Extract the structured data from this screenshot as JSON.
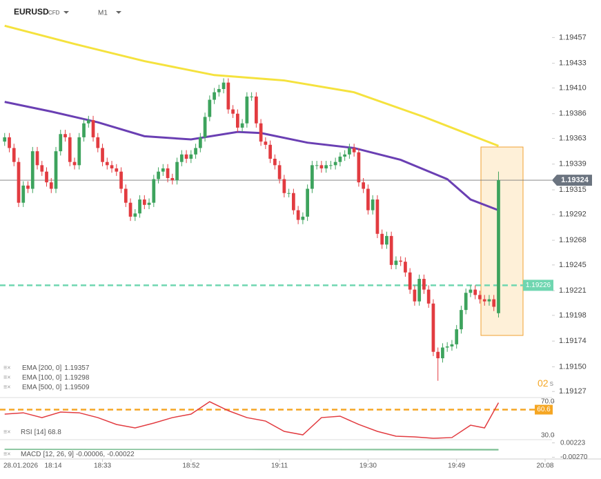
{
  "header": {
    "symbol": "EURUSD",
    "instrument_type": "CFD",
    "timeframe": "M1"
  },
  "chart_data": {
    "type": "candlestick",
    "open": [
      1.1936,
      1.19364,
      1.19354,
      1.19341,
      1.19303,
      1.19319,
      1.19316,
      1.19351,
      1.19338,
      1.19332,
      1.19322,
      1.19316,
      1.19351,
      1.19367,
      1.19364,
      1.19341,
      1.19338,
      1.19364,
      1.19377,
      1.1938,
      1.19364,
      1.19354,
      1.19341,
      1.19338,
      1.19335,
      1.19332,
      1.19316,
      1.19303,
      1.1929,
      1.19293,
      1.19306,
      1.19301,
      1.19303,
      1.19325,
      1.19332,
      1.19335,
      1.19326,
      1.19324,
      1.19341,
      1.19348,
      1.19344,
      1.19348,
      1.19354,
      1.19364,
      1.19383,
      1.19399,
      1.19406,
      1.19409,
      1.19415,
      1.1939,
      1.19386,
      1.19373,
      1.19377,
      1.19402,
      1.19402,
      1.19377,
      1.1936,
      1.19357,
      1.19344,
      1.19338,
      1.19325,
      1.19312,
      1.19312,
      1.19296,
      1.19287,
      1.1929,
      1.19316,
      1.19338,
      1.19338,
      1.19335,
      1.19338,
      1.19338,
      1.19341,
      1.19346,
      1.19348,
      1.19354,
      1.1935,
      1.19322,
      1.19316,
      1.19296,
      1.19306,
      1.19274,
      1.19264,
      1.19272,
      1.19245,
      1.19249,
      1.19248,
      1.19238,
      1.19222,
      1.19211,
      1.19232,
      1.19222,
      1.19209,
      1.19164,
      1.19158,
      1.19168,
      1.19169,
      1.19171,
      1.19185,
      1.19203,
      1.19219,
      1.19222,
      1.19217,
      1.19213,
      1.19211,
      1.19213,
      1.192
    ],
    "high": [
      1.19368,
      1.19368,
      1.19358,
      1.19345,
      1.19323,
      1.19323,
      1.19355,
      1.19355,
      1.19342,
      1.19336,
      1.19326,
      1.19355,
      1.19371,
      1.19371,
      1.19368,
      1.19345,
      1.19368,
      1.19381,
      1.19384,
      1.19384,
      1.19368,
      1.19358,
      1.19345,
      1.19342,
      1.19339,
      1.19336,
      1.1932,
      1.19307,
      1.19297,
      1.1931,
      1.1931,
      1.19307,
      1.19329,
      1.19336,
      1.19339,
      1.19339,
      1.1933,
      1.19345,
      1.19352,
      1.19352,
      1.19352,
      1.19358,
      1.19368,
      1.19387,
      1.19403,
      1.1941,
      1.19413,
      1.19419,
      1.19419,
      1.19394,
      1.1939,
      1.19381,
      1.19406,
      1.19406,
      1.19406,
      1.19381,
      1.19364,
      1.19361,
      1.19348,
      1.19342,
      1.19329,
      1.19316,
      1.19316,
      1.193,
      1.19294,
      1.1932,
      1.19342,
      1.19342,
      1.19342,
      1.19342,
      1.19342,
      1.19345,
      1.1935,
      1.19352,
      1.19358,
      1.19358,
      1.19354,
      1.19326,
      1.1932,
      1.1931,
      1.1931,
      1.19278,
      1.19276,
      1.19276,
      1.19253,
      1.19253,
      1.19252,
      1.19242,
      1.19226,
      1.19236,
      1.19236,
      1.19226,
      1.19213,
      1.19168,
      1.19172,
      1.19173,
      1.19175,
      1.19189,
      1.19207,
      1.19223,
      1.19226,
      1.19226,
      1.19221,
      1.19217,
      1.19217,
      1.19217,
      1.19332
    ],
    "low": [
      1.19356,
      1.1935,
      1.19337,
      1.19299,
      1.19299,
      1.19312,
      1.19312,
      1.19334,
      1.19328,
      1.19318,
      1.19312,
      1.19312,
      1.19347,
      1.1936,
      1.19337,
      1.19334,
      1.19334,
      1.1936,
      1.19373,
      1.1936,
      1.1935,
      1.19337,
      1.19334,
      1.19331,
      1.19328,
      1.19312,
      1.19299,
      1.19286,
      1.19286,
      1.19289,
      1.19297,
      1.19297,
      1.19299,
      1.19321,
      1.19328,
      1.19322,
      1.1932,
      1.1932,
      1.19337,
      1.1934,
      1.1934,
      1.19344,
      1.1935,
      1.1936,
      1.19379,
      1.19395,
      1.19402,
      1.19405,
      1.19386,
      1.19382,
      1.19369,
      1.19369,
      1.19373,
      1.19398,
      1.19373,
      1.19356,
      1.19353,
      1.1934,
      1.19334,
      1.19321,
      1.19308,
      1.19308,
      1.19292,
      1.19283,
      1.19283,
      1.19286,
      1.19312,
      1.19334,
      1.19331,
      1.19331,
      1.19334,
      1.19334,
      1.19337,
      1.19342,
      1.19344,
      1.19346,
      1.19318,
      1.19312,
      1.19292,
      1.19292,
      1.1927,
      1.1926,
      1.1926,
      1.19241,
      1.19241,
      1.19244,
      1.19234,
      1.19218,
      1.19207,
      1.19207,
      1.19218,
      1.19205,
      1.1916,
      1.19137,
      1.19154,
      1.19164,
      1.19165,
      1.19167,
      1.19181,
      1.19199,
      1.19215,
      1.19213,
      1.19209,
      1.19207,
      1.19207,
      1.19202,
      1.19196
    ],
    "close": [
      1.19364,
      1.19354,
      1.19341,
      1.19303,
      1.19319,
      1.19316,
      1.19351,
      1.19338,
      1.19332,
      1.19322,
      1.19316,
      1.19351,
      1.19367,
      1.19364,
      1.19341,
      1.19338,
      1.19364,
      1.19377,
      1.1938,
      1.19364,
      1.19354,
      1.19341,
      1.19338,
      1.19335,
      1.19332,
      1.19316,
      1.19303,
      1.1929,
      1.19293,
      1.19306,
      1.19301,
      1.19303,
      1.19325,
      1.19332,
      1.19335,
      1.19326,
      1.19324,
      1.19341,
      1.19348,
      1.19344,
      1.19348,
      1.19354,
      1.19364,
      1.19383,
      1.19399,
      1.19406,
      1.19409,
      1.19415,
      1.1939,
      1.19386,
      1.19373,
      1.19377,
      1.19402,
      1.19402,
      1.19377,
      1.1936,
      1.19357,
      1.19344,
      1.19338,
      1.19325,
      1.19312,
      1.19312,
      1.19296,
      1.19287,
      1.1929,
      1.19316,
      1.19338,
      1.19338,
      1.19335,
      1.19338,
      1.19338,
      1.19341,
      1.19346,
      1.19348,
      1.19354,
      1.1935,
      1.19322,
      1.19316,
      1.19296,
      1.19306,
      1.19274,
      1.19264,
      1.19272,
      1.19245,
      1.19249,
      1.19248,
      1.19238,
      1.19222,
      1.19211,
      1.19232,
      1.19222,
      1.19209,
      1.19164,
      1.19158,
      1.19168,
      1.19169,
      1.19171,
      1.19185,
      1.19203,
      1.19219,
      1.19222,
      1.19217,
      1.19213,
      1.19211,
      1.19213,
      1.19206,
      1.19324
    ],
    "up_color": "#3da35d",
    "down_color": "#e23b40",
    "xlim": [
      -1,
      128
    ],
    "xticks": [
      {
        "value": 21,
        "label": "18:33"
      },
      {
        "value": 40,
        "label": "18:52"
      },
      {
        "value": 59,
        "label": "19:11"
      },
      {
        "value": 78,
        "label": "19:30"
      },
      {
        "value": 97,
        "label": "19:49"
      },
      {
        "value": 116,
        "label": "20:08"
      }
    ],
    "date_label": "28.01.2026",
    "first_time_label": "18:14",
    "ylim": [
      1.19122,
      1.19492
    ],
    "yticks": [
      1.19457,
      1.19433,
      {
        "value": 1.1941,
        "label": "1.19410"
      },
      1.19386,
      1.19363,
      1.19339,
      1.19315,
      1.19292,
      1.19268,
      1.19245,
      1.19221,
      1.19198,
      1.19174,
      {
        "value": 1.1915,
        "label": "1.19150"
      },
      1.19127
    ],
    "current_price": 1.19324,
    "price_line": 1.19226,
    "countdown": {
      "value": "02",
      "unit": "s"
    },
    "series": [
      {
        "name": "EMA [200, 0]",
        "last": 1.19357,
        "color": "#f5e23e",
        "x": [
          0,
          15,
          30,
          45,
          60,
          75,
          90,
          106
        ],
        "values": [
          1.19468,
          1.19451,
          1.19435,
          1.19422,
          1.19417,
          1.19406,
          1.19383,
          1.19356
        ]
      },
      {
        "name": "EMA [100, 0]",
        "last": 1.19298,
        "color": "#6a3fb3",
        "x": [
          0,
          10,
          20,
          30,
          40,
          50,
          55,
          65,
          75,
          85,
          95,
          100,
          106
        ],
        "values": [
          1.19397,
          1.19388,
          1.19378,
          1.19365,
          1.19362,
          1.19369,
          1.19368,
          1.19359,
          1.19354,
          1.19343,
          1.19325,
          1.19306,
          1.19296
        ]
      },
      {
        "name": "EMA [500, 0]",
        "last": 1.19509,
        "color": "#3b6fd8",
        "x": [],
        "values": []
      }
    ],
    "rsi": {
      "name": "RSI",
      "params": "[14]",
      "value": 68.8,
      "level": 60.6,
      "color": "#e23b40",
      "level_color": "#f5a623",
      "ylim": [
        25.1,
        73.3
      ],
      "yticks": [
        {
          "value": 70,
          "label": "70.0"
        },
        {
          "value": 30,
          "label": "30.0"
        }
      ],
      "x": [
        0,
        4,
        8,
        12,
        16,
        20,
        24,
        28,
        32,
        36,
        40,
        44,
        48,
        52,
        56,
        60,
        64,
        68,
        72,
        76,
        80,
        84,
        88,
        92,
        96,
        100,
        103,
        106
      ],
      "values": [
        55.3,
        56.9,
        51.2,
        57.8,
        56.9,
        51.2,
        43.1,
        39.0,
        44.7,
        51.2,
        55.3,
        70,
        59.4,
        51.2,
        47.1,
        34.9,
        30.8,
        51.2,
        52.9,
        43.1,
        34.9,
        29.2,
        28.4,
        26.7,
        27.6,
        42.2,
        39.0,
        68.8
      ]
    },
    "macd": {
      "name": "MACD",
      "params": "[12, 26, 9]",
      "macd": -6e-05,
      "signal": -0.00022,
      "ylim": [
        -0.0033,
        0.0031
      ],
      "yticks": [
        0.00223,
        {
          "value": -0.0027,
          "label": "-0.00270"
        }
      ],
      "x": [
        0,
        53,
        106
      ],
      "macd_values": [
        1e-05,
        -2e-05,
        -6e-05
      ],
      "signal_values": [
        2e-05,
        -8e-05,
        -0.00022
      ]
    }
  }
}
